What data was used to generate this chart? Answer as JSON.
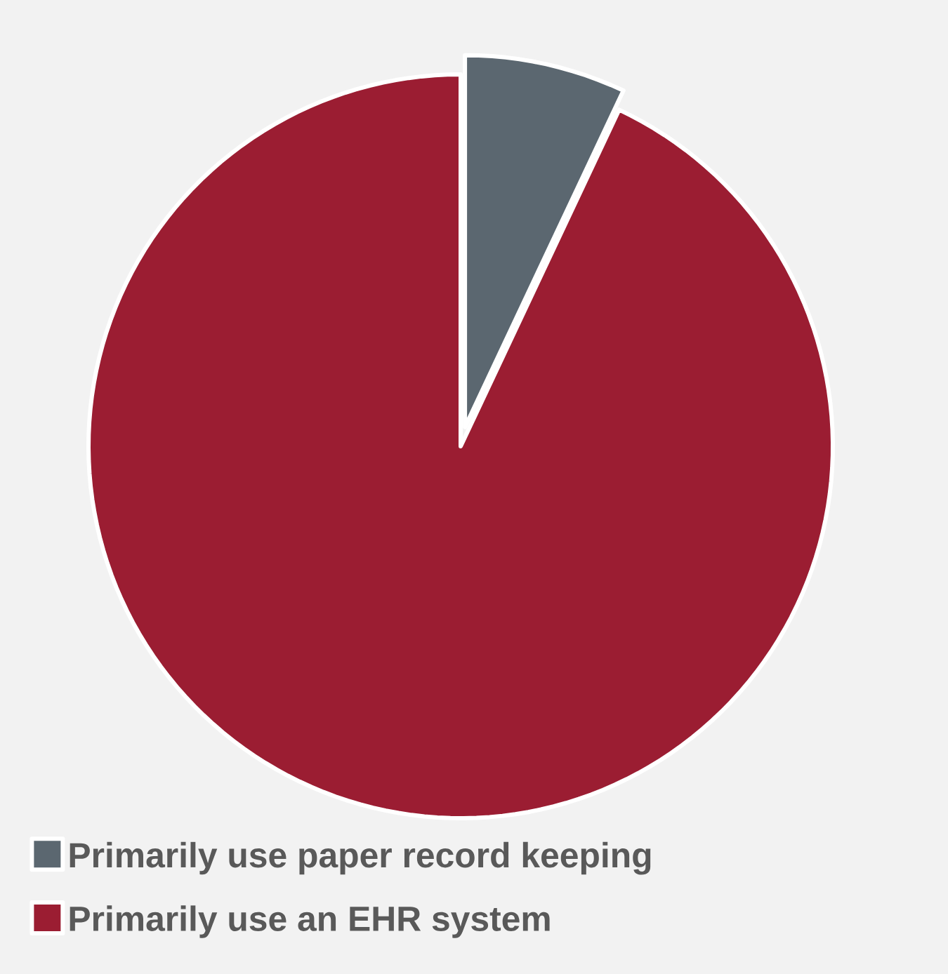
{
  "chart_data": {
    "type": "pie",
    "categories": [
      "Primarily use paper record keeping",
      "Primarily use an EHR system"
    ],
    "values": [
      7,
      93
    ],
    "colors": [
      "#5b6770",
      "#9b1d32"
    ],
    "legend": "bottom"
  }
}
